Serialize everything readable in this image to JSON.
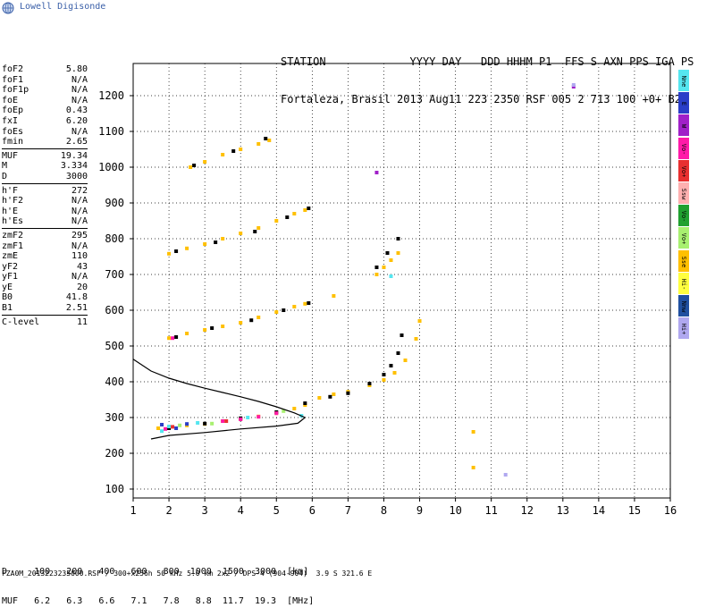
{
  "brand": "Lowell Digisonde",
  "header": {
    "line1": "STATION             YYYY DAY   DDD HHHM P1  FFS S AXN PPS IGA PS",
    "line2": "Fortaleza, Brasil 2013 Aug11 223 2350 RSF 005 2 713 100 +0+ B2"
  },
  "params": [
    [
      {
        "k": "foF2",
        "v": "5.80"
      },
      {
        "k": "foF1",
        "v": "N/A"
      },
      {
        "k": "foF1p",
        "v": "N/A"
      },
      {
        "k": "foE",
        "v": "N/A"
      },
      {
        "k": "foEp",
        "v": "0.43"
      },
      {
        "k": "fxI",
        "v": "6.20"
      },
      {
        "k": "foEs",
        "v": "N/A"
      },
      {
        "k": "fmin",
        "v": "2.65"
      }
    ],
    [
      {
        "k": "MUF",
        "v": "19.34"
      },
      {
        "k": "M",
        "v": "3.334"
      },
      {
        "k": "D",
        "v": "3000"
      }
    ],
    [
      {
        "k": "h'F",
        "v": "272"
      },
      {
        "k": "h'F2",
        "v": "N/A"
      },
      {
        "k": "h'E",
        "v": "N/A"
      },
      {
        "k": "h'Es",
        "v": "N/A"
      }
    ],
    [
      {
        "k": "zmF2",
        "v": "295"
      },
      {
        "k": "zmF1",
        "v": "N/A"
      },
      {
        "k": "zmE",
        "v": "110"
      },
      {
        "k": "yF2",
        "v": "43"
      },
      {
        "k": "yF1",
        "v": "N/A"
      },
      {
        "k": "yE",
        "v": "20"
      },
      {
        "k": "B0",
        "v": "41.8"
      },
      {
        "k": "B1",
        "v": "2.51"
      }
    ],
    [
      {
        "k": "C-level",
        "v": "11"
      }
    ]
  ],
  "footer": {
    "d_line": "D     100   200   400   600   800  1000  1500  3000  [km]",
    "muf_line": "MUF   6.2   6.3   6.6   7.1   7.8   8.8  11.7  19.3  [MHz]",
    "file_line": "FZA0M_2013223235000.RSF / 300+x256h 50 kHz 5.0 km 2x2 / DPS-4 (904-904)  3.9 S 321.6 E"
  },
  "legend": [
    {
      "label": "Nne",
      "color": "#55e6f0"
    },
    {
      "label": "E",
      "color": "#2a3ec8"
    },
    {
      "label": "W",
      "color": "#a020c8"
    },
    {
      "label": "Vo-",
      "color": "#ff1aa8"
    },
    {
      "label": "Vo+",
      "color": "#e83030"
    },
    {
      "label": "Ssw",
      "color": "#ffb0b0"
    },
    {
      "label": "Vo-",
      "color": "#20a030"
    },
    {
      "label": "Vo+",
      "color": "#a8f070"
    },
    {
      "label": "Sse",
      "color": "#ffc000"
    },
    {
      "label": "Hi-",
      "color": "#ffff40"
    },
    {
      "label": "Nnw",
      "color": "#2050a0"
    },
    {
      "label": "Hi+",
      "color": "#b0a8f0"
    }
  ],
  "chart_data": {
    "type": "scatter",
    "title": "",
    "xlabel": "",
    "ylabel": "",
    "xlim": [
      1,
      16
    ],
    "ylim": [
      75,
      1290
    ],
    "xticks": [
      1,
      2,
      3,
      4,
      5,
      6,
      7,
      8,
      9,
      10,
      11,
      12,
      13,
      14,
      15,
      16
    ],
    "yticks": [
      100,
      200,
      300,
      400,
      500,
      600,
      700,
      800,
      900,
      1000,
      1100,
      1200
    ],
    "grid": true,
    "series": [
      {
        "color": "#ffc000",
        "points": [
          [
            1.7,
            270
          ],
          [
            2.0,
            272
          ],
          [
            2.5,
            278
          ],
          [
            3.0,
            282
          ],
          [
            3.5,
            290
          ],
          [
            4.0,
            296
          ],
          [
            4.5,
            303
          ],
          [
            5.0,
            312
          ],
          [
            5.5,
            325
          ],
          [
            5.8,
            335
          ],
          [
            6.2,
            355
          ],
          [
            6.6,
            365
          ],
          [
            7.0,
            372
          ],
          [
            7.6,
            390
          ],
          [
            8.0,
            405
          ],
          [
            8.3,
            425
          ],
          [
            8.6,
            460
          ],
          [
            8.9,
            520
          ],
          [
            9.0,
            570
          ],
          [
            2.0,
            522
          ],
          [
            2.5,
            535
          ],
          [
            3.0,
            545
          ],
          [
            3.5,
            555
          ],
          [
            4.0,
            565
          ],
          [
            4.5,
            580
          ],
          [
            5.0,
            595
          ],
          [
            5.5,
            610
          ],
          [
            5.8,
            618
          ],
          [
            2.0,
            758
          ],
          [
            2.5,
            773
          ],
          [
            3.0,
            785
          ],
          [
            3.5,
            800
          ],
          [
            4.0,
            815
          ],
          [
            4.5,
            830
          ],
          [
            5.0,
            850
          ],
          [
            5.5,
            870
          ],
          [
            5.8,
            880
          ],
          [
            2.6,
            1000
          ],
          [
            3.0,
            1015
          ],
          [
            3.5,
            1035
          ],
          [
            4.0,
            1050
          ],
          [
            4.5,
            1065
          ],
          [
            4.8,
            1075
          ],
          [
            7.8,
            700
          ],
          [
            8.0,
            720
          ],
          [
            8.2,
            740
          ],
          [
            8.4,
            760
          ],
          [
            6.6,
            640
          ],
          [
            10.5,
            160
          ],
          [
            10.5,
            260
          ]
        ]
      },
      {
        "color": "#000000",
        "points": [
          [
            2.0,
            270
          ],
          [
            3.0,
            283
          ],
          [
            4.0,
            298
          ],
          [
            5.0,
            315
          ],
          [
            5.8,
            340
          ],
          [
            6.5,
            358
          ],
          [
            7.0,
            368
          ],
          [
            7.6,
            395
          ],
          [
            8.0,
            420
          ],
          [
            8.2,
            445
          ],
          [
            8.4,
            480
          ],
          [
            8.5,
            530
          ],
          [
            2.2,
            525
          ],
          [
            3.2,
            550
          ],
          [
            4.3,
            572
          ],
          [
            5.2,
            600
          ],
          [
            5.9,
            620
          ],
          [
            2.2,
            765
          ],
          [
            3.3,
            790
          ],
          [
            4.4,
            820
          ],
          [
            5.3,
            860
          ],
          [
            5.9,
            885
          ],
          [
            2.7,
            1005
          ],
          [
            3.8,
            1045
          ],
          [
            4.7,
            1080
          ],
          [
            7.8,
            720
          ],
          [
            8.1,
            760
          ],
          [
            8.4,
            800
          ]
        ]
      },
      {
        "color": "#ff1aa8",
        "points": [
          [
            3.5,
            290
          ],
          [
            4.0,
            295
          ],
          [
            4.5,
            302
          ],
          [
            5.0,
            312
          ],
          [
            2.1,
            522
          ],
          [
            1.9,
            268
          ]
        ]
      },
      {
        "color": "#55e6f0",
        "points": [
          [
            2.0,
            275
          ],
          [
            2.8,
            285
          ],
          [
            1.8,
            262
          ],
          [
            4.2,
            300
          ],
          [
            5.7,
            305
          ],
          [
            8.2,
            695
          ]
        ]
      },
      {
        "color": "#2a3ec8",
        "points": [
          [
            1.8,
            280
          ],
          [
            2.5,
            282
          ],
          [
            2.2,
            270
          ]
        ]
      },
      {
        "color": "#a8f070",
        "points": [
          [
            2.3,
            278
          ],
          [
            3.2,
            283
          ],
          [
            5.2,
            318
          ]
        ]
      },
      {
        "color": "#e83030",
        "points": [
          [
            2.1,
            274
          ],
          [
            3.6,
            290
          ]
        ]
      },
      {
        "color": "#a020c8",
        "points": [
          [
            7.8,
            985
          ],
          [
            13.3,
            1225
          ]
        ]
      },
      {
        "color": "#b0a8f0",
        "points": [
          [
            11.4,
            140
          ],
          [
            13.3,
            1230
          ]
        ]
      }
    ],
    "model_curves": [
      {
        "name": "",
        "points": [
          [
            1.0,
            463
          ],
          [
            1.5,
            430
          ],
          [
            2.0,
            410
          ],
          [
            2.5,
            395
          ],
          [
            3.0,
            382
          ],
          [
            3.5,
            370
          ],
          [
            4.0,
            358
          ],
          [
            4.5,
            345
          ],
          [
            5.0,
            330
          ],
          [
            5.5,
            313
          ],
          [
            5.8,
            300
          ],
          [
            5.6,
            284
          ],
          [
            5.0,
            276
          ],
          [
            4.0,
            268
          ],
          [
            3.0,
            258
          ],
          [
            2.0,
            250
          ],
          [
            1.5,
            240
          ]
        ]
      }
    ]
  }
}
